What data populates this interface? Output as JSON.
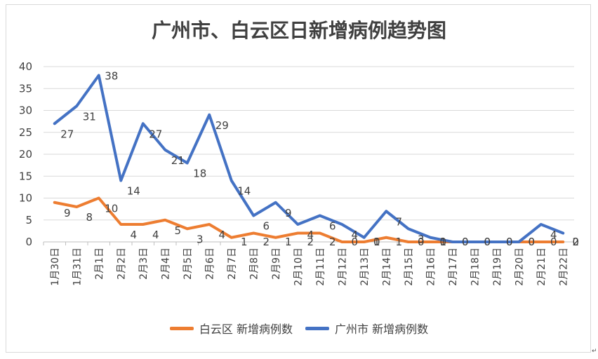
{
  "chart_data": {
    "type": "line",
    "title": "广州市、白云区日新增病例趋势图",
    "xlabel": "",
    "ylabel": "",
    "ylim": [
      0,
      40
    ],
    "yticks": [
      0,
      5,
      10,
      15,
      20,
      25,
      30,
      35,
      40
    ],
    "grid": true,
    "legend_position": "bottom",
    "categories": [
      "1月30日",
      "1月31日",
      "2月1日",
      "2月2日",
      "2月3日",
      "2月4日",
      "2月5日",
      "2月6日",
      "2月7日",
      "2月8日",
      "2月9日",
      "2月10日",
      "2月11日",
      "2月12日",
      "2月13日",
      "2月14日",
      "2月15日",
      "2月16日",
      "2月17日",
      "2月18日",
      "2月19日",
      "2月20日",
      "2月21日",
      "2月22日"
    ],
    "series": [
      {
        "name": "白云区 新增病例数",
        "color": "#ed7d31",
        "values": [
          9,
          8,
          10,
          4,
          4,
          5,
          3,
          4,
          1,
          2,
          1,
          2,
          2,
          0,
          0,
          1,
          0,
          0,
          0,
          0,
          0,
          0,
          0,
          0
        ],
        "labels": [
          "9",
          "8",
          "10",
          "4",
          "4",
          "5",
          "3",
          "4",
          "1",
          "2",
          "1",
          "2",
          "2",
          "0",
          "0",
          "1",
          "0",
          "0",
          "0",
          "0",
          "0",
          "0",
          "0",
          "0"
        ]
      },
      {
        "name": "广州市 新增病例数",
        "color": "#4472c4",
        "values": [
          27,
          31,
          38,
          14,
          27,
          21,
          18,
          29,
          14,
          6,
          9,
          4,
          6,
          4,
          1,
          7,
          3,
          1,
          0,
          0,
          0,
          0,
          4,
          2
        ],
        "labels": [
          "27",
          "31",
          "38",
          "14",
          "27",
          "21",
          "18",
          "29",
          "14",
          "6",
          "9",
          "4",
          "6",
          "4",
          "1",
          "7",
          "3",
          "1",
          "0",
          "0",
          "0",
          "0",
          "4",
          "2"
        ]
      }
    ]
  },
  "corner_mark": "↵"
}
